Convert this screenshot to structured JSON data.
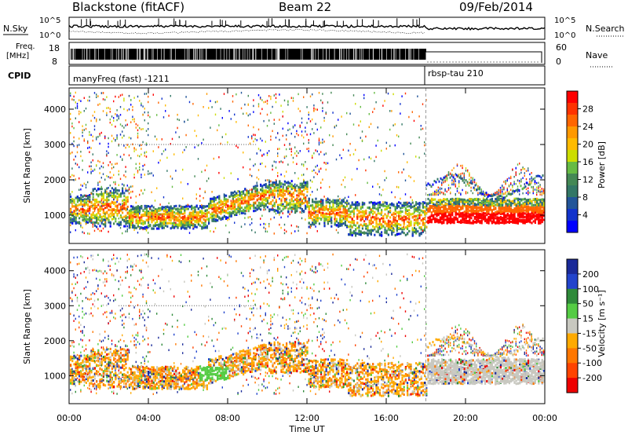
{
  "header": {
    "station": "Blackstone (fitACF)",
    "beam": "Beam 22",
    "date": "09/Feb/2014"
  },
  "panels": {
    "nsky_label": "N.Sky",
    "nsky_ticks": [
      "10^5",
      "10^0"
    ],
    "nsearch_label": "N.Search",
    "freq_label_1": "Freq.",
    "freq_label_2": "[MHz]",
    "freq_ticks": [
      "18",
      "8"
    ],
    "nave_ticks": [
      "60",
      "0"
    ],
    "nave_label": "Nave",
    "cpid_label": "CPID",
    "cpid_1": "manyFreq (fast) -1211",
    "cpid_2": "rbsp-tau 210"
  },
  "chart_data": [
    {
      "type": "heatmap",
      "name": "power",
      "xlabel": "",
      "ylabel": "Slant Range [km]",
      "y_ticks": [
        1000,
        2000,
        3000,
        4000
      ],
      "ylim": [
        200,
        4600
      ],
      "x_range_hours": [
        0,
        24
      ],
      "colorbar": {
        "label": "Power [dB]",
        "ticks": [
          "28",
          "24",
          "20",
          "16",
          "12",
          "8",
          "4"
        ],
        "colors": [
          "#ff0000",
          "#ff3300",
          "#ff6600",
          "#ff9900",
          "#ffbb00",
          "#ccdd00",
          "#66bb44",
          "#448855",
          "#337766",
          "#225599",
          "#1133cc",
          "#0000ff"
        ]
      }
    },
    {
      "type": "heatmap",
      "name": "velocity",
      "xlabel": "Time UT",
      "ylabel": "Slant Range [km]",
      "y_ticks": [
        1000,
        2000,
        3000,
        4000
      ],
      "ylim": [
        200,
        4600
      ],
      "x_ticks": [
        "00:00",
        "04:00",
        "08:00",
        "12:00",
        "16:00",
        "20:00",
        "00:00"
      ],
      "colorbar": {
        "label": "Velocity [m s⁻¹]",
        "ticks": [
          "200",
          "100",
          "50",
          "15",
          "-15",
          "-50",
          "-100",
          "-200"
        ],
        "colors": [
          "#1a2a99",
          "#2244cc",
          "#2f8a3a",
          "#55cc44",
          "#c8c8c0",
          "#ffaa00",
          "#ff7700",
          "#ff4400",
          "#ee0000"
        ]
      }
    }
  ]
}
